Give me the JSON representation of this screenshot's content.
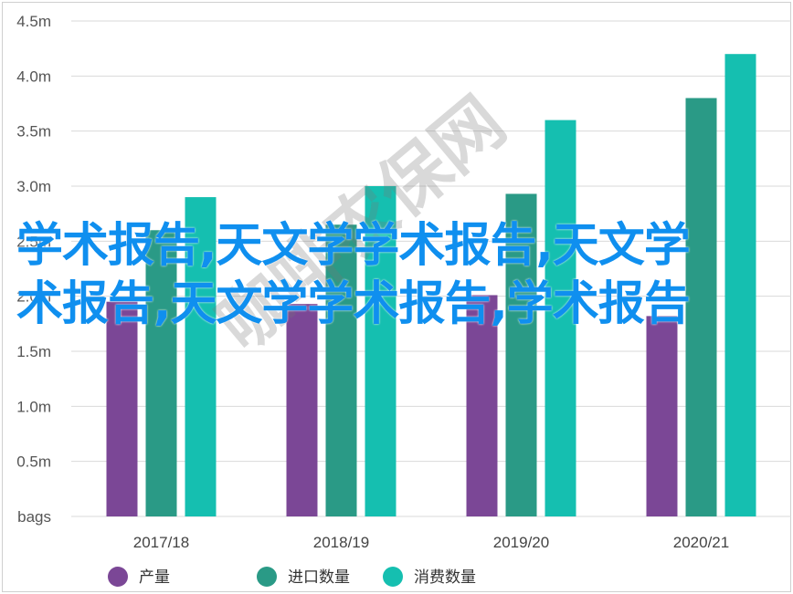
{
  "chart_data": {
    "type": "bar",
    "categories": [
      "2017/18",
      "2018/19",
      "2019/20",
      "2020/21"
    ],
    "series": [
      {
        "name": "产量",
        "color": "#7b4796",
        "values": [
          1.95,
          1.93,
          2.01,
          1.82
        ]
      },
      {
        "name": "进口数量",
        "color": "#2a9a86",
        "values": [
          2.6,
          2.65,
          2.93,
          3.8
        ]
      },
      {
        "name": "消费数量",
        "color": "#15bfb0",
        "values": [
          2.9,
          3.0,
          3.6,
          4.2
        ]
      }
    ],
    "yticks": [
      "bags",
      "0.5m",
      "1.0m",
      "1.5m",
      "2.0m",
      "2.5m",
      "3.0m",
      "3.5m",
      "4.0m",
      "4.5m"
    ],
    "ylim": [
      0,
      4.5
    ],
    "grid": true,
    "legend_position": "bottom"
  },
  "overlay_text": "学术报告,天文学学术报告,天文学术报告,天文学学术报告,学术报告",
  "watermark_text": "咖啡农保网"
}
